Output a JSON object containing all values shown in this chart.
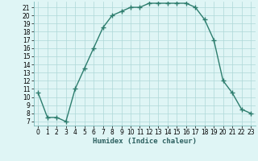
{
  "x": [
    0,
    1,
    2,
    3,
    4,
    5,
    6,
    7,
    8,
    9,
    10,
    11,
    12,
    13,
    14,
    15,
    16,
    17,
    18,
    19,
    20,
    21,
    22,
    23
  ],
  "y": [
    10.5,
    7.5,
    7.5,
    7.0,
    11.0,
    13.5,
    16.0,
    18.5,
    20.0,
    20.5,
    21.0,
    21.0,
    21.5,
    21.5,
    21.5,
    21.5,
    21.5,
    21.0,
    19.5,
    17.0,
    12.0,
    10.5,
    8.5,
    8.0
  ],
  "line_color": "#2d7d6e",
  "marker": "+",
  "markersize": 4,
  "linewidth": 1.0,
  "bg_color": "#dff5f5",
  "grid_color": "#aed8d8",
  "xlabel": "Humidex (Indice chaleur)",
  "xlim": [
    -0.5,
    23.5
  ],
  "ylim": [
    6.5,
    21.7
  ],
  "yticks": [
    7,
    8,
    9,
    10,
    11,
    12,
    13,
    14,
    15,
    16,
    17,
    18,
    19,
    20,
    21
  ],
  "xticks": [
    0,
    1,
    2,
    3,
    4,
    5,
    6,
    7,
    8,
    9,
    10,
    11,
    12,
    13,
    14,
    15,
    16,
    17,
    18,
    19,
    20,
    21,
    22,
    23
  ],
  "xlabel_fontsize": 6.5,
  "tick_fontsize": 5.5
}
